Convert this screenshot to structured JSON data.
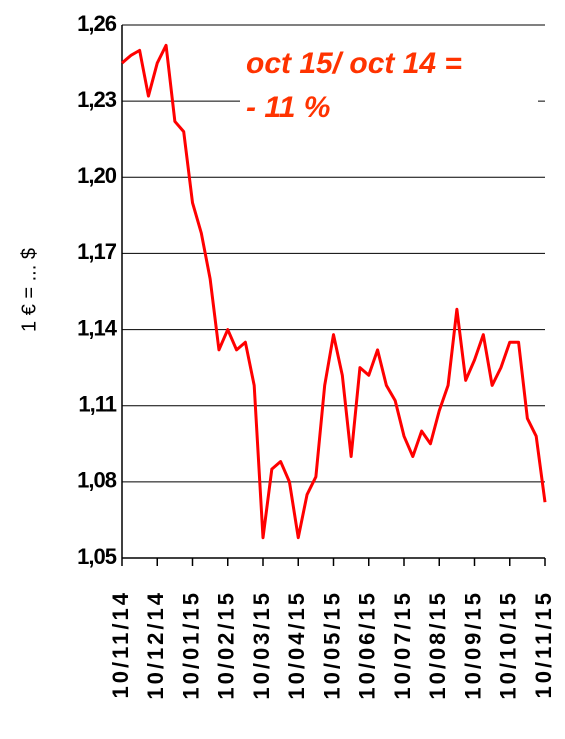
{
  "chart_data": {
    "type": "line",
    "annotation": [
      "oct 15/ oct 14 =",
      "- 11 %"
    ],
    "ylabel": "1 € = ... $",
    "categories": [
      "10/11/14",
      null,
      null,
      null,
      "10/12/14",
      null,
      null,
      null,
      "10/01/15",
      null,
      null,
      null,
      "10/02/15",
      null,
      null,
      null,
      "10/03/15",
      null,
      null,
      null,
      "10/04/15",
      null,
      null,
      null,
      "10/05/15",
      null,
      null,
      null,
      "10/06/15",
      null,
      null,
      null,
      "10/07/15",
      null,
      null,
      null,
      "10/08/15",
      null,
      null,
      null,
      "10/09/15",
      null,
      null,
      null,
      "10/10/15",
      null,
      null,
      null,
      "10/11/15"
    ],
    "series": [
      {
        "color": "#ff0000",
        "values": [
          1.245,
          1.248,
          1.25,
          1.232,
          1.245,
          1.252,
          1.222,
          1.218,
          1.19,
          1.178,
          1.16,
          1.132,
          1.14,
          1.132,
          1.135,
          1.118,
          1.058,
          1.085,
          1.088,
          1.08,
          1.058,
          1.075,
          1.082,
          1.118,
          1.138,
          1.122,
          1.09,
          1.125,
          1.122,
          1.132,
          1.118,
          1.112,
          1.098,
          1.09,
          1.1,
          1.095,
          1.108,
          1.118,
          1.148,
          1.12,
          1.128,
          1.138,
          1.118,
          1.125,
          1.135,
          1.135,
          1.105,
          1.098,
          1.072
        ]
      }
    ],
    "ylim": [
      1.05,
      1.26
    ],
    "yticks": [
      {
        "value": 1.05,
        "label": "1,05"
      },
      {
        "value": 1.08,
        "label": "1,08"
      },
      {
        "value": 1.11,
        "label": "1,11"
      },
      {
        "value": 1.14,
        "label": "1,14"
      },
      {
        "value": 1.17,
        "label": "1,17"
      },
      {
        "value": 1.2,
        "label": "1,20"
      },
      {
        "value": 1.23,
        "label": "1,23"
      },
      {
        "value": 1.26,
        "label": "1,26"
      }
    ],
    "grid": true
  }
}
